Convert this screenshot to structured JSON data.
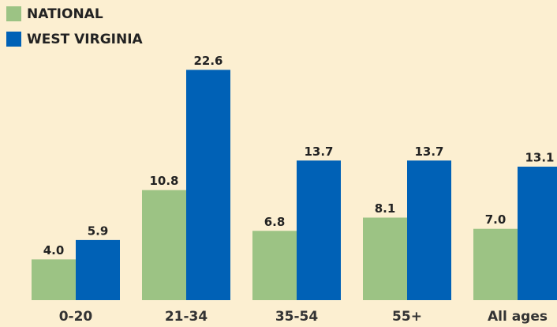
{
  "chart_data": {
    "type": "bar",
    "categories": [
      "0-20",
      "21-34",
      "35-54",
      "55+",
      "All ages"
    ],
    "series": [
      {
        "name": "NATIONAL",
        "color": "#9cc384",
        "values": [
          4.0,
          10.8,
          6.8,
          8.1,
          7.0
        ],
        "value_labels": [
          "4.0",
          "10.8",
          "6.8",
          "8.1",
          "7.0"
        ]
      },
      {
        "name": "WEST VIRGINIA",
        "color": "#0061b6",
        "values": [
          5.9,
          22.6,
          13.7,
          13.7,
          13.1
        ],
        "value_labels": [
          "5.9",
          "22.6",
          "13.7",
          "13.7",
          "13.1"
        ]
      }
    ],
    "legend": "top-left"
  }
}
